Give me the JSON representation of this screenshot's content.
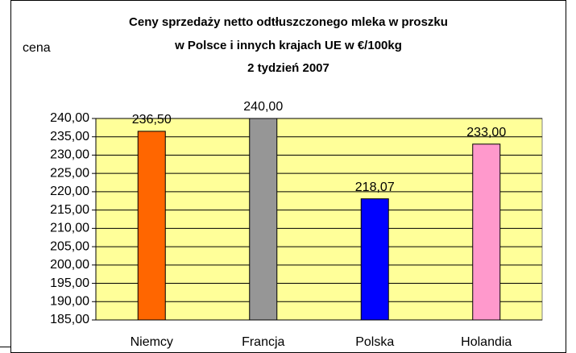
{
  "chart_data": {
    "type": "bar",
    "title": [
      "Ceny sprzedaży netto odtłuszczonego mleka w proszku",
      "w Polsce i innych krajach UE w €/100kg",
      "2 tydzień 2007"
    ],
    "y_label": "cena",
    "categories": [
      "Niemcy",
      "Francja",
      "Polska",
      "Holandia"
    ],
    "values": [
      236.5,
      240,
      218.07,
      233
    ],
    "value_labels": [
      "236,50",
      "240,00",
      "218,07",
      "233,00"
    ],
    "colors": [
      "#ff6600",
      "#969696",
      "#0000ff",
      "#ff99cc"
    ],
    "ylim": [
      185,
      240
    ],
    "yticks": [
      {
        "value": 185,
        "label": "185,00"
      },
      {
        "value": 190,
        "label": "190,00"
      },
      {
        "value": 195,
        "label": "195,00"
      },
      {
        "value": 200,
        "label": "200,00"
      },
      {
        "value": 205,
        "label": "205,00"
      },
      {
        "value": 210,
        "label": "210,00"
      },
      {
        "value": 215,
        "label": "215,00"
      },
      {
        "value": 220,
        "label": "220,00"
      },
      {
        "value": 225,
        "label": "225,00"
      },
      {
        "value": 230,
        "label": "230,00"
      },
      {
        "value": 235,
        "label": "235,00"
      },
      {
        "value": 240,
        "label": "240,00"
      }
    ],
    "grid": true,
    "plot_background": "#ffff99"
  }
}
